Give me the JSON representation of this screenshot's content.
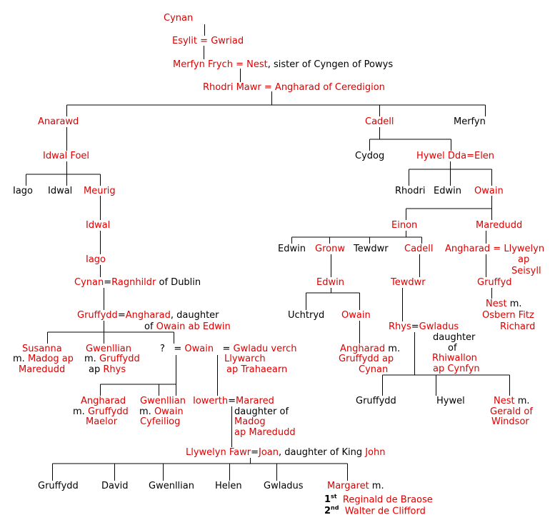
{
  "colors": {
    "name": "#dd0000",
    "text": "#000000",
    "line": "#000000"
  },
  "n": {
    "cynan1": "Cynan",
    "esylit": "Esylit",
    "eq1": "=",
    "gwriad": "Gwriad",
    "merfyn_frych": "Merfyn Frych",
    "eq2": "=",
    "nest1": "Nest",
    "nest1_note": ", sister of Cyngen of Powys",
    "rhodri_mawr": "Rhodri Mawr",
    "eq3": "=",
    "angharad1": "Angharad of Ceredigion",
    "anarawd": "Anarawd",
    "cadell1": "Cadell",
    "merfyn2": "Merfyn",
    "idwal_foel": "Idwal Foel",
    "cydog": "Cydog",
    "hywel_dda": "Hywel Dda",
    "eq4": "=",
    "elen": "Elen",
    "iago1": "Iago",
    "idwal1": "Idwal",
    "meurig": "Meurig",
    "rhodri2": "Rhodri",
    "edwin1": "Edwin",
    "owain1": "Owain",
    "idwal2": "Idwal",
    "einon": "Einon",
    "maredudd1": "Maredudd",
    "iago2": "Iago",
    "edwin2": "Edwin",
    "gronw": "Gronw",
    "tewdwr1": "Tewdwr",
    "cadell2": "Cadell",
    "angharad2": "Angharad",
    "eq5": "=",
    "llywelyn_ap": "Llywelyn",
    "ap1": "ap",
    "seisyll": "Seisyll",
    "cynan2": "Cynan",
    "eq6": "=",
    "ragnhildr": "Ragnhildr",
    "ragnhildr_note": " of Dublin",
    "edwin3": "Edwin",
    "tewdwr2": "Tewdwr",
    "gruffyd": "Gruffyd",
    "nest2": "Nest",
    "nest2_m": " m.",
    "osbern": "Osbern Fitz",
    "richard": "Richard",
    "uchtryd": "Uchtryd",
    "owain2": "Owain",
    "gruffydd1": "Gruffydd",
    "eq7": "=",
    "angharad3": "Angharad",
    "angharad3_note": ", daughter",
    "of1": "of ",
    "owain_ab_edwin": "Owain ab Edwin",
    "rhys": "Rhys",
    "eq8": "=",
    "gwladus1": "Gwladus",
    "daughter2": "daughter",
    "of2": "of",
    "rhiwallon": "Rhiwallon",
    "ap_cynfyn": "ap Cynfyn",
    "susanna": "Susanna",
    "susanna_m": "m. ",
    "madog_ap1": "Madog ap",
    "maredudd2": "Maredudd",
    "gwenllian1": "Gwenllian",
    "gwenllian1_m": "m. ",
    "gruffydd2": "Gruffydd",
    "ap2": "ap ",
    "rhys2": "Rhys",
    "q": "?",
    "eq9": "=",
    "owain3": "Owain",
    "eq10": "=",
    "gwladu": "Gwladu verch",
    "llywarch": "Llywarch",
    "ap_trahaearn": "ap Trahaearn",
    "angharad4": "Angharad",
    "angharad4_m": " m.",
    "gruffydd_ap": "Gruffydd ap",
    "cynan3": "Cynan",
    "angharad5": "Angharad",
    "angharad5_m": "m. ",
    "gruffydd3": "Gruffydd",
    "maelor": "Maelor",
    "gwenllian2": "Gwenllian",
    "gwenllian2_m": "m. ",
    "owain4": "Owain",
    "cyfeiliog": "Cyfeiliog",
    "iowerth": "Iowerth",
    "eq11": "=",
    "marared": "Marared",
    "daughter3": "daughter of",
    "madog2": "Madog",
    "ap_maredudd": "ap Maredudd",
    "gruffydd4": "Gruffydd",
    "hywel2": "Hywel",
    "nest3": "Nest",
    "nest3_m": " m.",
    "gerald": "Gerald of",
    "windsor": "Windsor",
    "llywelyn_fawr": "Llywelyn Fawr",
    "eq12": "=",
    "joan": "Joan",
    "joan_note": ", daughter of King ",
    "john": "John",
    "gruffydd5": "Gruffydd",
    "david": "David",
    "gwenllian3": "Gwenllian",
    "helen": "Helen",
    "gwladus2": "Gwladus",
    "margaret": "Margaret",
    "margaret_m": " m.",
    "first": "1",
    "first_sup": "st",
    "reginald": "Reginald de Braose",
    "second": "2",
    "second_sup": "nd",
    "walter": "Walter de Clifford"
  }
}
